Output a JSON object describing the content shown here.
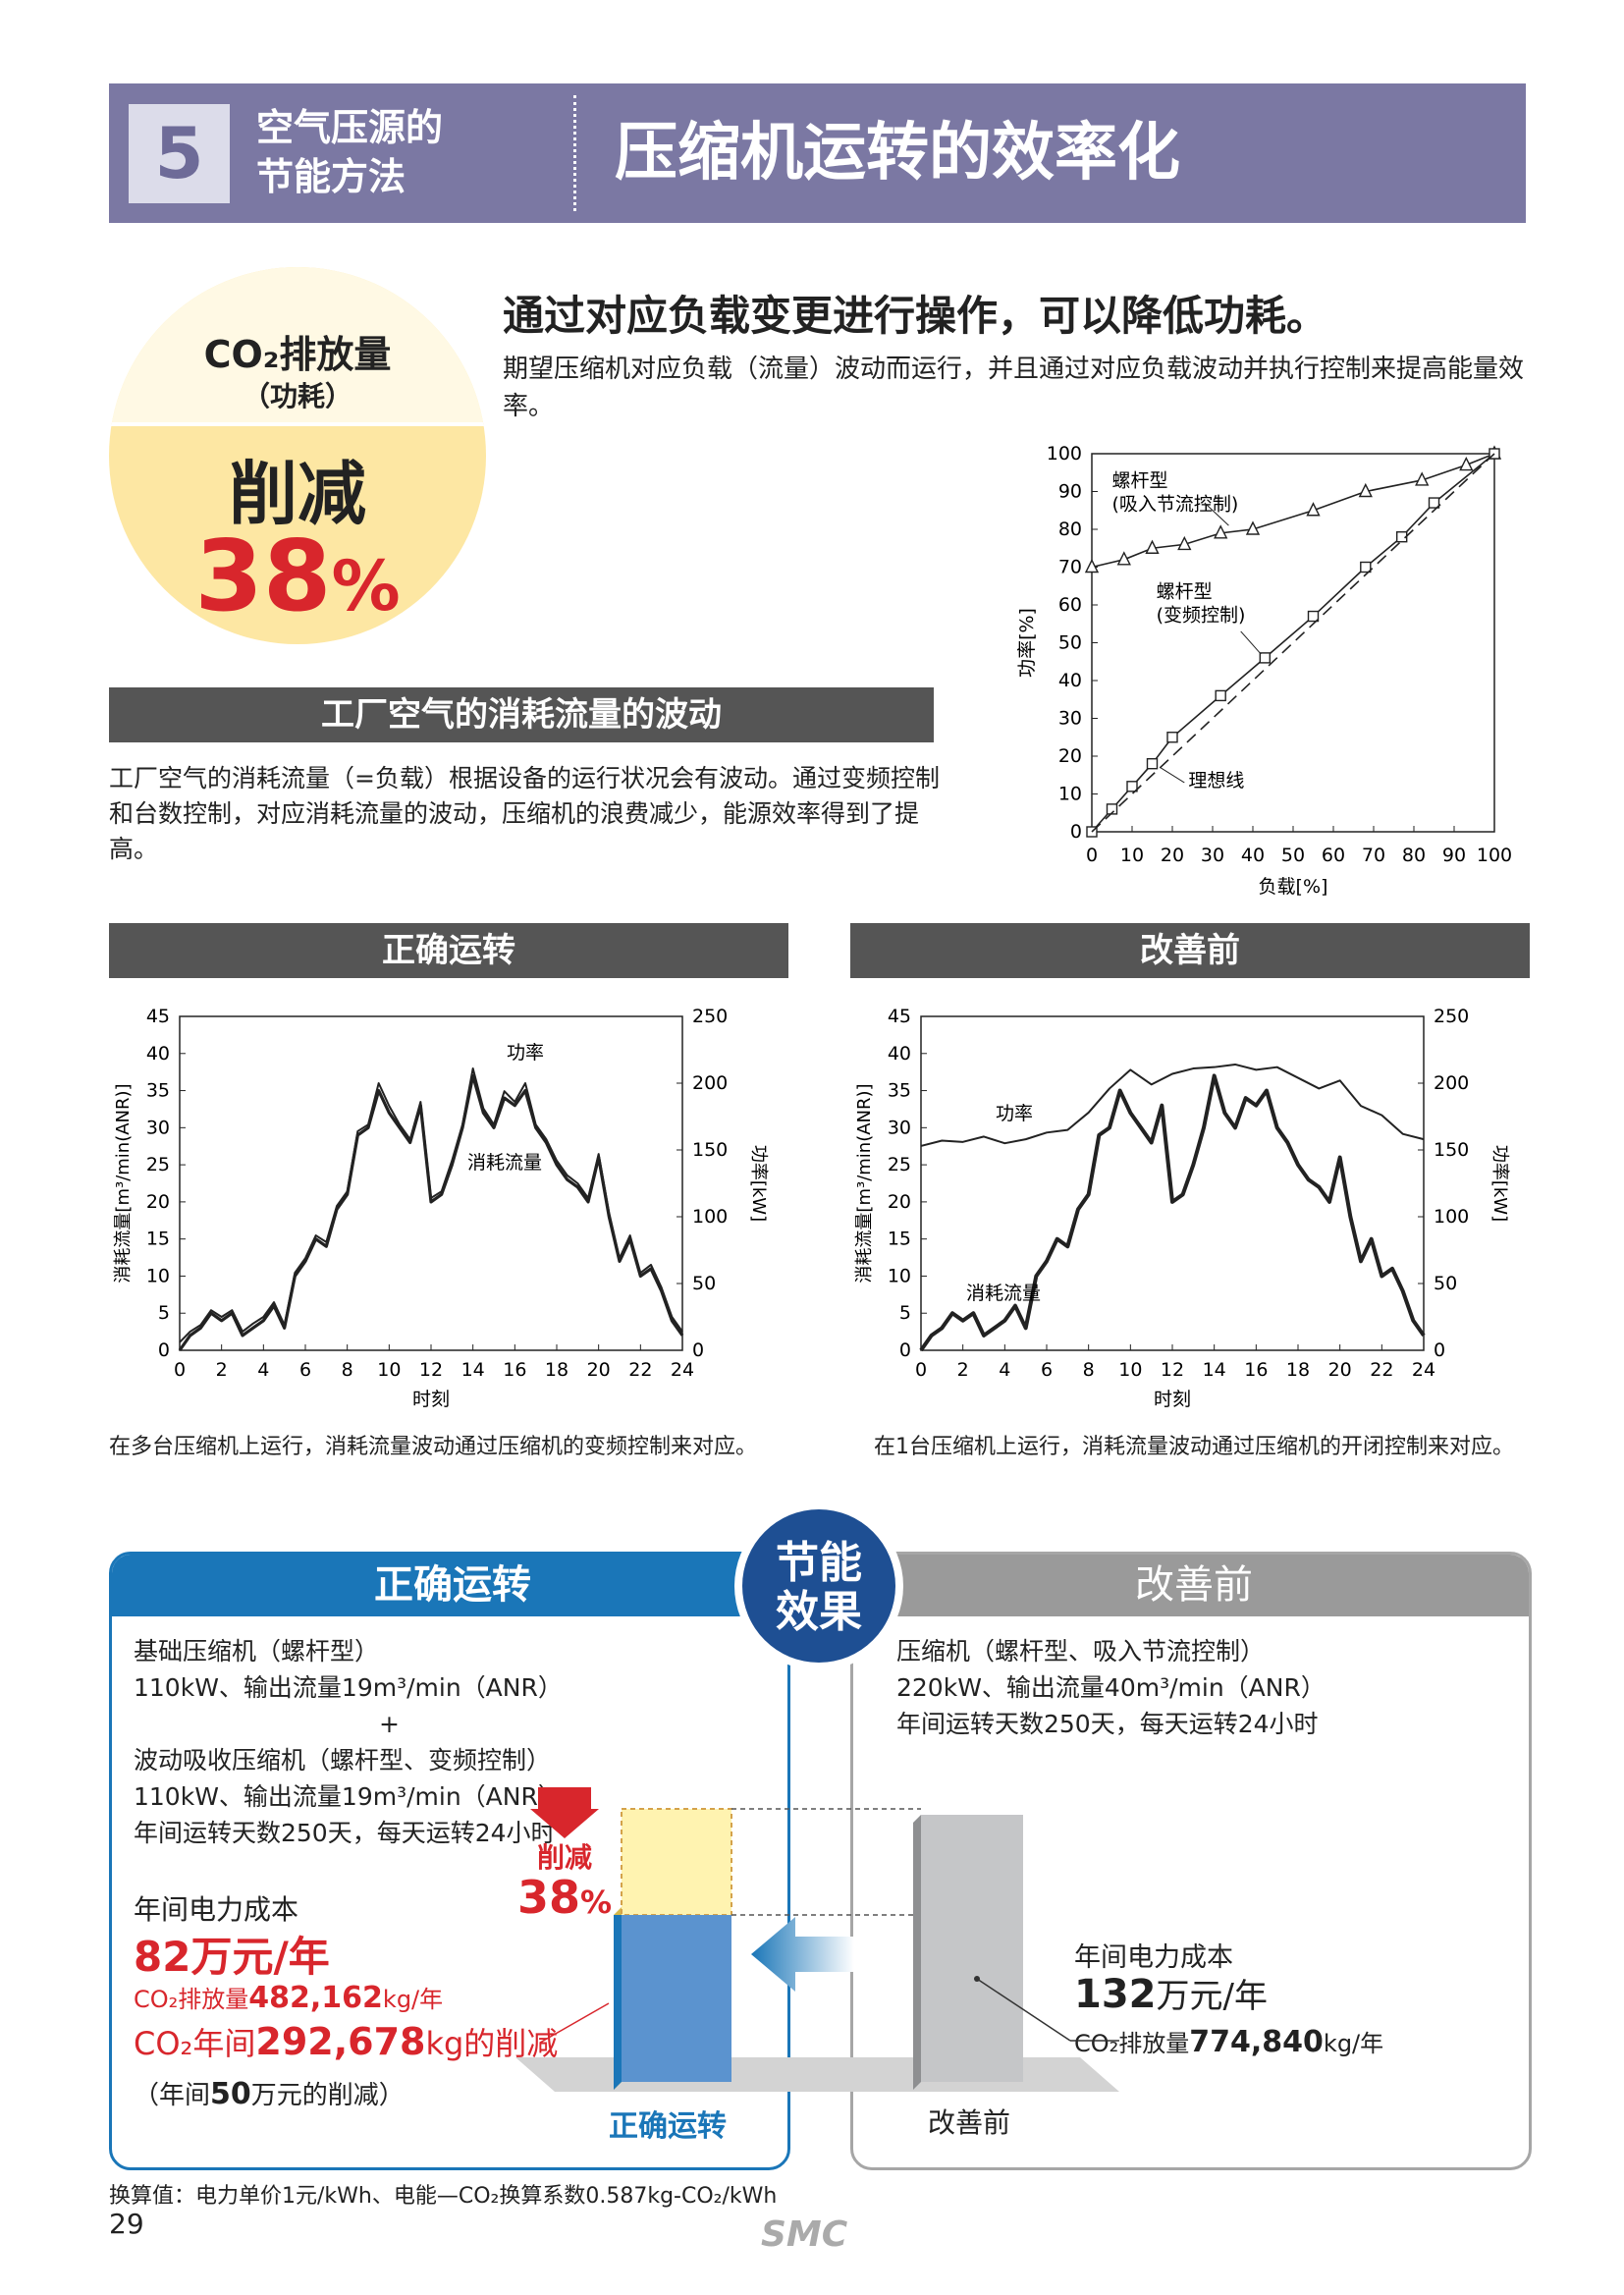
{
  "header": {
    "number": "5",
    "subtitle_line1": "空气压源的",
    "subtitle_line2": "节能方法",
    "title": "压缩机运转的效率化"
  },
  "badge_circle": {
    "co2_label": "CO₂排放量",
    "sub_label": "（功耗）",
    "cut_label": "削减",
    "percent": "38",
    "percent_sign": "%"
  },
  "headline": "通过对应负载变更进行操作，可以降低功耗。",
  "intro": "期望压缩机对应负载（流量）波动而运行，并且通过对应负载波动并执行控制来提高能量效率。",
  "section_fluct": {
    "title": "工厂空气的消耗流量的波动",
    "text": "工厂空气的消耗流量（=负载）根据设备的运行状况会有波动。通过变频控制和台数控制，对应消耗流量的波动，压缩机的浪费减少，能源效率得到了提高。"
  },
  "chart_data": [
    {
      "type": "line",
      "xlabel": "负载[%]",
      "ylabel": "功率[%]",
      "xlim": [
        0,
        100
      ],
      "ylim": [
        0,
        100
      ],
      "xticks": [
        0,
        10,
        20,
        30,
        40,
        50,
        60,
        70,
        80,
        90,
        100
      ],
      "yticks": [
        0,
        10,
        20,
        30,
        40,
        50,
        60,
        70,
        80,
        90,
        100
      ],
      "grid": false,
      "series": [
        {
          "name": "螺杆型（吸入节流控制）",
          "marker": "triangle",
          "x": [
            0,
            8,
            15,
            23,
            32,
            40,
            55,
            68,
            82,
            93,
            100
          ],
          "y": [
            70,
            72,
            75,
            76,
            79,
            80,
            85,
            90,
            93,
            97,
            100
          ]
        },
        {
          "name": "螺杆型（变频控制）",
          "marker": "square",
          "x": [
            0,
            5,
            10,
            15,
            20,
            32,
            43,
            55,
            68,
            77,
            85,
            100
          ],
          "y": [
            0,
            6,
            12,
            18,
            25,
            36,
            46,
            57,
            70,
            78,
            87,
            100
          ]
        },
        {
          "name": "理想线",
          "dashed": true,
          "x": [
            0,
            100
          ],
          "y": [
            0,
            100
          ]
        }
      ],
      "annotations": [
        "螺杆型",
        "(吸入节流控制)",
        "螺杆型",
        "(变频控制)",
        "理想线"
      ]
    },
    {
      "type": "line",
      "title": "正确运转",
      "xlabel": "时刻",
      "ylabel": "消耗流量[m³/min(ANR)]",
      "y2label": "功率[kW]",
      "xlim": [
        0,
        24
      ],
      "ylim": [
        0,
        45
      ],
      "y2lim": [
        0,
        250
      ],
      "xticks": [
        0,
        2,
        4,
        6,
        8,
        10,
        12,
        14,
        16,
        18,
        20,
        22,
        24
      ],
      "yticks": [
        0,
        5,
        10,
        15,
        20,
        25,
        30,
        35,
        40,
        45
      ],
      "y2ticks": [
        0,
        50,
        100,
        150,
        200,
        250
      ],
      "series": [
        {
          "name": "消耗流量",
          "axis": "left",
          "x": [
            0,
            0.5,
            1,
            1.5,
            2,
            2.5,
            3,
            3.5,
            4,
            4.5,
            5,
            5.5,
            6,
            6.5,
            7,
            7.5,
            8,
            8.5,
            9,
            9.5,
            10,
            10.5,
            11,
            11.5,
            12,
            12.5,
            13,
            13.5,
            14,
            14.5,
            15,
            15.5,
            16,
            16.5,
            17,
            17.5,
            18,
            18.5,
            19,
            19.5,
            20,
            20.5,
            21,
            21.5,
            22,
            22.5,
            23,
            23.5,
            24
          ],
          "y": [
            0,
            2,
            3,
            5,
            4,
            5,
            2,
            3,
            4,
            6,
            3,
            10,
            12,
            15,
            14,
            19,
            21,
            29,
            30,
            35,
            32,
            30,
            28,
            33,
            20,
            21,
            25,
            30,
            37,
            32,
            30,
            34,
            33,
            35,
            30,
            28,
            25,
            23,
            22,
            20,
            26,
            18,
            12,
            15,
            10,
            11,
            8,
            4,
            2
          ]
        },
        {
          "name": "功率",
          "axis": "right",
          "x": [
            0,
            0.5,
            1,
            1.5,
            2,
            2.5,
            3,
            3.5,
            4,
            4.5,
            5,
            5.5,
            6,
            6.5,
            7,
            7.5,
            8,
            8.5,
            9,
            9.5,
            10,
            10.5,
            11,
            11.5,
            12,
            12.5,
            13,
            13.5,
            14,
            14.5,
            15,
            15.5,
            16,
            16.5,
            17,
            17.5,
            18,
            18.5,
            19,
            19.5,
            20,
            20.5,
            21,
            21.5,
            22,
            22.5,
            23,
            23.5,
            24
          ],
          "y": [
            6,
            14,
            19,
            30,
            25,
            30,
            14,
            20,
            25,
            36,
            19,
            58,
            69,
            86,
            81,
            108,
            119,
            164,
            169,
            200,
            183,
            169,
            158,
            186,
            114,
            119,
            142,
            169,
            211,
            181,
            169,
            194,
            186,
            200,
            169,
            158,
            142,
            131,
            125,
            114,
            147,
            103,
            69,
            86,
            58,
            64,
            47,
            25,
            14
          ]
        }
      ],
      "annotations": [
        "功率",
        "消耗流量"
      ]
    },
    {
      "type": "line",
      "title": "改善前",
      "xlabel": "时刻",
      "ylabel": "消耗流量[m³/min(ANR)]",
      "y2label": "功率[kW]",
      "xlim": [
        0,
        24
      ],
      "ylim": [
        0,
        45
      ],
      "y2lim": [
        0,
        250
      ],
      "xticks": [
        0,
        2,
        4,
        6,
        8,
        10,
        12,
        14,
        16,
        18,
        20,
        22,
        24
      ],
      "yticks": [
        0,
        5,
        10,
        15,
        20,
        25,
        30,
        35,
        40,
        45
      ],
      "y2ticks": [
        0,
        50,
        100,
        150,
        200,
        250
      ],
      "series": [
        {
          "name": "消耗流量",
          "axis": "left",
          "x": [
            0,
            0.5,
            1,
            1.5,
            2,
            2.5,
            3,
            3.5,
            4,
            4.5,
            5,
            5.5,
            6,
            6.5,
            7,
            7.5,
            8,
            8.5,
            9,
            9.5,
            10,
            10.5,
            11,
            11.5,
            12,
            12.5,
            13,
            13.5,
            14,
            14.5,
            15,
            15.5,
            16,
            16.5,
            17,
            17.5,
            18,
            18.5,
            19,
            19.5,
            20,
            20.5,
            21,
            21.5,
            22,
            22.5,
            23,
            23.5,
            24
          ],
          "y": [
            0,
            2,
            3,
            5,
            4,
            5,
            2,
            3,
            4,
            6,
            3,
            10,
            12,
            15,
            14,
            19,
            21,
            29,
            30,
            35,
            32,
            30,
            28,
            33,
            20,
            21,
            25,
            30,
            37,
            32,
            30,
            34,
            33,
            35,
            30,
            28,
            25,
            23,
            22,
            20,
            26,
            18,
            12,
            15,
            10,
            11,
            8,
            4,
            2
          ]
        },
        {
          "name": "功率",
          "axis": "right",
          "x": [
            0,
            1,
            2,
            3,
            4,
            5,
            6,
            7,
            8,
            9,
            10,
            11,
            12,
            13,
            14,
            15,
            16,
            17,
            18,
            19,
            20,
            21,
            22,
            23,
            24
          ],
          "y": [
            153,
            157,
            156,
            160,
            155,
            158,
            163,
            165,
            178,
            196,
            210,
            199,
            207,
            211,
            212,
            214,
            210,
            212,
            204,
            196,
            202,
            183,
            176,
            162,
            158
          ]
        }
      ],
      "annotations": [
        "功率",
        "消耗流量"
      ]
    }
  ],
  "chart_captions": {
    "good": "在多台压缩机上运行，消耗流量波动通过压缩机的变频控制来对应。",
    "before": "在1台压缩机上运行，消耗流量波动通过压缩机的开闭控制来对应。"
  },
  "bottom": {
    "left_title": "正确运转",
    "right_title": "改善前",
    "badge_line1": "节能",
    "badge_line2": "效果",
    "left_lines": [
      "基础压缩机（螺杆型）",
      "110kW、输出流量19m³/min（ANR）",
      "+",
      "波动吸收压缩机（螺杆型、变频控制）",
      "110kW、输出流量19m³/min（ANR）",
      "年间运转天数250天，每天运转24小时"
    ],
    "right_lines": [
      "压缩机（螺杆型、吸入节流控制）",
      "220kW、输出流量40m³/min（ANR）",
      "年间运转天数250天，每天运转24小时"
    ],
    "left_cost_label": "年间电力成本",
    "left_cost_value": "82万元/年",
    "left_co2_prefix": "CO₂排放量",
    "left_co2_value": "482,162",
    "left_co2_unit": "kg/年",
    "left_red_prefix": "CO₂年间",
    "left_red_value": "292,678",
    "left_red_suffix": "kg的削减",
    "left_saving_open": "（年间",
    "left_saving_value": "50",
    "left_saving_close": "万元的削减）",
    "cut_label": "削减",
    "cut_percent": "38",
    "cut_sign": "%",
    "right_cost_label": "年间电力成本",
    "right_cost_value": "132",
    "right_cost_unit": "万元/年",
    "right_co2_prefix": "CO₂排放量",
    "right_co2_value": "774,840",
    "right_co2_unit": "kg/年",
    "bar_label_left": "正确运转",
    "bar_label_right": "改善前"
  },
  "footnote": "换算值：电力单价1元/kWh、电能—CO₂换算系数0.587kg-CO₂/kWh",
  "page_number": "29",
  "logo_text": "SMC",
  "colors": {
    "header": "#7b78a3",
    "accent_red": "#d8262c",
    "blue": "#1a76b8",
    "navy": "#1e4f93",
    "gray_bar": "#555555",
    "circle": "#fde7a3"
  }
}
